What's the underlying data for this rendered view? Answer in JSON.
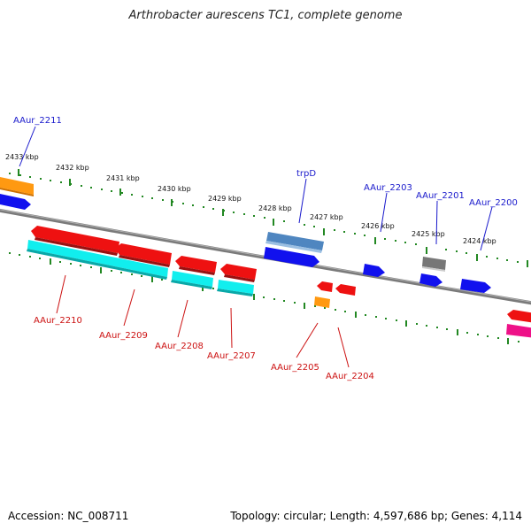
{
  "title": "Arthrobacter aurescens TC1, complete genome",
  "footer": {
    "accession": "Accession: NC_008711",
    "topology": "Topology: circular; Length: 4,597,686 bp; Genes: 4,114"
  },
  "kbp_labels": [
    "2433 kbp",
    "2432 kbp",
    "2431 kbp",
    "2430 kbp",
    "2429 kbp",
    "2428 kbp",
    "2427 kbp",
    "2426 kbp",
    "2425 kbp",
    "2424 kbp"
  ],
  "gene_labels_top": [
    "AAur_2211",
    "trpD",
    "AAur_2203",
    "AAur_2201",
    "AAur_2200"
  ],
  "gene_labels_bottom": [
    "AAur_2210",
    "AAur_2209",
    "AAur_2208",
    "AAur_2207",
    "AAur_2205",
    "AAur_2204"
  ],
  "colors": {
    "red": "#ee1111",
    "blue": "#1111ee",
    "cyan": "#11eeee",
    "orange": "#ff9911",
    "steel": "#4f86c0",
    "gray": "#777777",
    "magenta": "#ee1188",
    "tick": "#228822",
    "backbone": "#808080"
  }
}
